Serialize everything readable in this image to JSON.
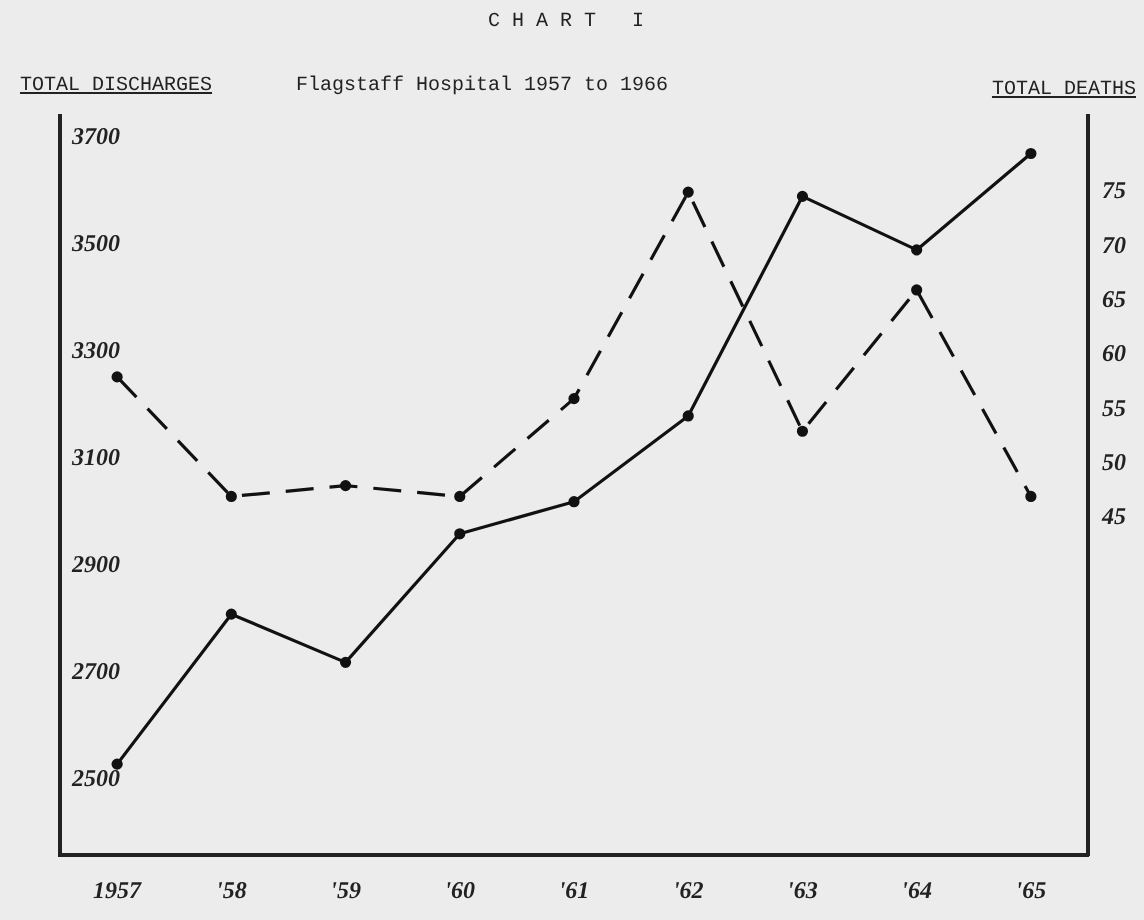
{
  "chart_data": {
    "type": "line",
    "title": "CHART I",
    "subtitle": "Flagstaff Hospital 1957 to 1966",
    "ylabel": "TOTAL DISCHARGES",
    "y2label": "TOTAL DEATHS",
    "categories": [
      "1957",
      "'58",
      "'59",
      "'60",
      "'61",
      "'62",
      "'63",
      "'64",
      "'65"
    ],
    "series": [
      {
        "color": "#111111",
        "line_style": "solid",
        "values": [
          2530,
          2810,
          2720,
          2960,
          3020,
          3180,
          3590,
          3490,
          3670
        ]
      },
      {
        "color": "#111111",
        "line_style": "dashed",
        "axis": "y2",
        "values": [
          58,
          47,
          48,
          47,
          56,
          75,
          53,
          66,
          47
        ]
      }
    ],
    "ylim": [
      2360,
      3740
    ],
    "yticks": [
      2500,
      2700,
      2900,
      3100,
      3300,
      3500,
      3700
    ],
    "y2lim": [
      14,
      82
    ],
    "y2ticks": [
      45,
      50,
      55,
      60,
      65,
      70,
      75
    ],
    "marker": "circle"
  }
}
